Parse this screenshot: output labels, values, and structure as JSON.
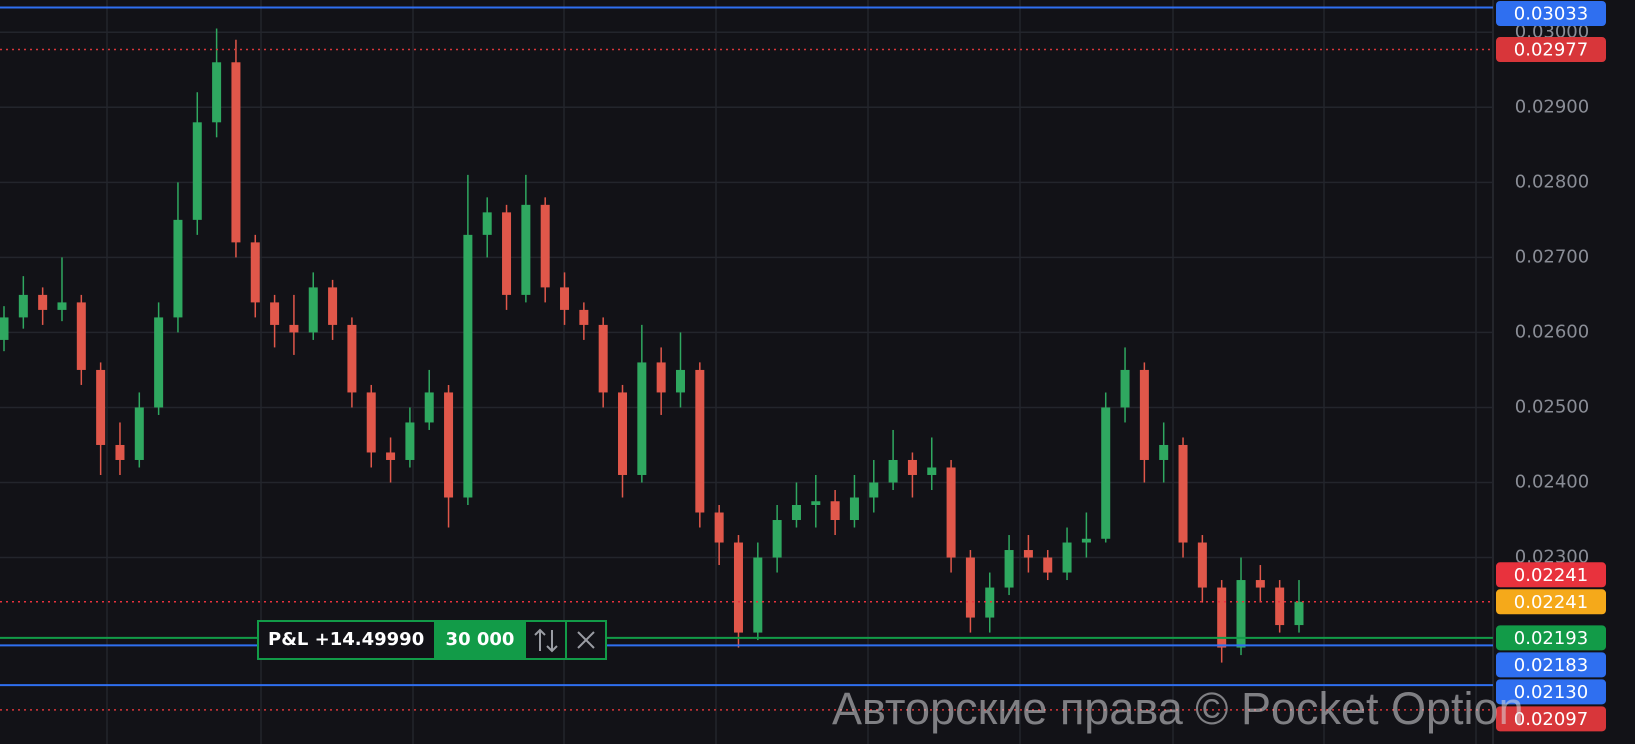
{
  "chart_data": {
    "type": "candlestick",
    "up_color": "#2fa860",
    "down_color": "#e0574a",
    "ylim": [
      0.020515,
      0.03043
    ],
    "yticks": [
      {
        "value": 0.023,
        "label": "0.02300"
      },
      {
        "value": 0.024,
        "label": "0.02400"
      },
      {
        "value": 0.025,
        "label": "0.02500"
      },
      {
        "value": 0.026,
        "label": "0.02600"
      },
      {
        "value": 0.027,
        "label": "0.02700"
      },
      {
        "value": 0.028,
        "label": "0.02800"
      },
      {
        "value": 0.029,
        "label": "0.02900"
      },
      {
        "value": 0.03,
        "label": "0.03000"
      }
    ],
    "grid": true,
    "open": [
      0.0259,
      0.0262,
      0.0265,
      0.0263,
      0.0264,
      0.0255,
      0.0245,
      0.0243,
      0.025,
      0.0262,
      0.0275,
      0.0288,
      0.0296,
      0.0272,
      0.0264,
      0.0261,
      0.026,
      0.0266,
      0.0261,
      0.0252,
      0.0244,
      0.0243,
      0.0248,
      0.0252,
      0.0238,
      0.0273,
      0.0276,
      0.0265,
      0.0277,
      0.0266,
      0.0263,
      0.0261,
      0.0252,
      0.0241,
      0.0256,
      0.0252,
      0.0255,
      0.0236,
      0.0232,
      0.022,
      0.023,
      0.0235,
      0.0237,
      0.02375,
      0.0235,
      0.0238,
      0.024,
      0.0243,
      0.0241,
      0.0242,
      0.023,
      0.0222,
      0.0226,
      0.0231,
      0.023,
      0.0228,
      0.0232,
      0.02325,
      0.025,
      0.0255,
      0.0243,
      0.0245,
      0.0232,
      0.0226,
      0.0218,
      0.0227,
      0.0226,
      0.0221
    ],
    "high": [
      0.02635,
      0.02675,
      0.0266,
      0.027,
      0.0265,
      0.0256,
      0.0248,
      0.0252,
      0.0264,
      0.028,
      0.0292,
      0.03005,
      0.0299,
      0.0273,
      0.0265,
      0.0265,
      0.0268,
      0.0267,
      0.0262,
      0.0253,
      0.0246,
      0.025,
      0.0255,
      0.0253,
      0.0281,
      0.0278,
      0.0277,
      0.0281,
      0.0278,
      0.0268,
      0.0264,
      0.0262,
      0.0253,
      0.0261,
      0.0258,
      0.026,
      0.0256,
      0.0237,
      0.0233,
      0.0232,
      0.0237,
      0.024,
      0.0241,
      0.0239,
      0.0241,
      0.0243,
      0.0247,
      0.0244,
      0.0246,
      0.0243,
      0.0231,
      0.0228,
      0.0233,
      0.0233,
      0.0231,
      0.0234,
      0.0236,
      0.0252,
      0.0258,
      0.0256,
      0.0248,
      0.0246,
      0.0233,
      0.0227,
      0.023,
      0.0229,
      0.0227,
      0.0227
    ],
    "low": [
      0.02575,
      0.02605,
      0.0261,
      0.02615,
      0.0253,
      0.0241,
      0.0241,
      0.0242,
      0.0249,
      0.026,
      0.0273,
      0.0286,
      0.027,
      0.0262,
      0.0258,
      0.0257,
      0.0259,
      0.0259,
      0.025,
      0.0242,
      0.024,
      0.0242,
      0.0247,
      0.0234,
      0.0237,
      0.027,
      0.0263,
      0.0264,
      0.0264,
      0.0261,
      0.0259,
      0.025,
      0.0238,
      0.024,
      0.0249,
      0.025,
      0.0234,
      0.0229,
      0.0218,
      0.0219,
      0.0228,
      0.0234,
      0.0234,
      0.0233,
      0.0234,
      0.0236,
      0.0239,
      0.0238,
      0.0239,
      0.0228,
      0.022,
      0.022,
      0.0225,
      0.0228,
      0.0227,
      0.0227,
      0.023,
      0.0232,
      0.0248,
      0.024,
      0.024,
      0.023,
      0.0224,
      0.0216,
      0.0217,
      0.0224,
      0.022,
      0.022
    ],
    "close": [
      0.0262,
      0.0265,
      0.0263,
      0.0264,
      0.0255,
      0.0245,
      0.0243,
      0.025,
      0.0262,
      0.0275,
      0.0288,
      0.0296,
      0.0272,
      0.0264,
      0.0261,
      0.026,
      0.0266,
      0.0261,
      0.0252,
      0.0244,
      0.0243,
      0.0248,
      0.0252,
      0.0238,
      0.0273,
      0.0276,
      0.0265,
      0.0277,
      0.0266,
      0.0263,
      0.0261,
      0.0252,
      0.0241,
      0.0256,
      0.0252,
      0.0255,
      0.0236,
      0.0232,
      0.022,
      0.023,
      0.0235,
      0.0237,
      0.02375,
      0.0235,
      0.0238,
      0.024,
      0.0243,
      0.0241,
      0.0242,
      0.023,
      0.0222,
      0.0226,
      0.0231,
      0.023,
      0.0228,
      0.0232,
      0.02325,
      0.025,
      0.0255,
      0.0243,
      0.0245,
      0.0232,
      0.0226,
      0.0218,
      0.0227,
      0.0226,
      0.0221,
      0.02241
    ],
    "levels": [
      {
        "value": 0.03033,
        "label": "0.03033",
        "color": "#2f6ff0",
        "line": "solid"
      },
      {
        "value": 0.02977,
        "label": "0.02977",
        "color": "#d8363a",
        "line": "dotted"
      },
      {
        "value": 0.02241,
        "label": "0.02241",
        "color": "#e8323d",
        "line": "dotted"
      },
      {
        "value": 0.02241,
        "label": "0.02241",
        "color": "#f5a91a",
        "line": "none"
      },
      {
        "value": 0.02193,
        "label": "0.02193",
        "color": "#129b48",
        "line": "solid"
      },
      {
        "value": 0.02183,
        "label": "0.02183",
        "color": "#2f6ff0",
        "line": "solid"
      },
      {
        "value": 0.0213,
        "label": "0.02130",
        "color": "#2f6ff0",
        "line": "solid"
      },
      {
        "value": 0.02097,
        "label": "0.02097",
        "color": "#d8363a",
        "line": "dotted"
      }
    ]
  },
  "pnl": {
    "label": "P&L +14.49990",
    "amount": "30 000"
  },
  "watermark": "Авторские права © Pocket Option"
}
